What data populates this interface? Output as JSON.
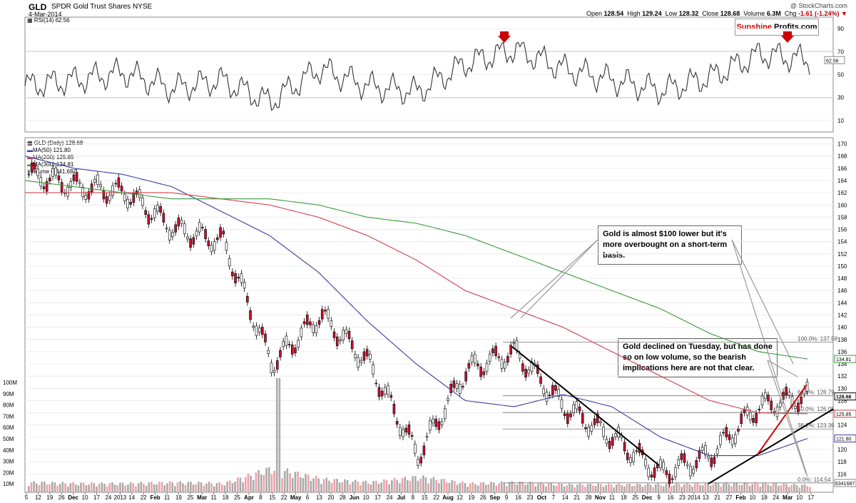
{
  "header": {
    "symbol": "GLD",
    "name": "SPDR Gold Trust Shares",
    "exchange": "NYSE",
    "date": "4-Mar-2014",
    "credit": "@ StockCharts.com",
    "open_label": "Open",
    "open": "128.54",
    "high_label": "High",
    "high": "129.24",
    "low_label": "Low",
    "low": "128.32",
    "close_label": "Close",
    "close": "128.68",
    "volume_label": "Volume",
    "volume": "6.3M",
    "chg_label": "Chg",
    "chg": "-1.61 (-1.24%)",
    "chg_icon": "down-triangle"
  },
  "logo": {
    "part1": "Sunshine",
    "part2": "Profits.com"
  },
  "rsi": {
    "label": "RSI(14) 62.56",
    "value_label": "62.56",
    "overbought": 70,
    "oversold": 30,
    "midline": 50,
    "ticks": [
      "90",
      "70",
      "50",
      "30",
      "10"
    ],
    "arrow_icon": "red-down-arrow"
  },
  "legend": {
    "title": "GLD (Daily) 128.68",
    "ma50": "MA(50) 121.80",
    "ma200": "MA(200) 125.85",
    "ma300": "MA(300) 134.81",
    "volume": "Volume 6,341,687"
  },
  "colors": {
    "ma50": "#3a3fa0",
    "ma200": "#d04050",
    "ma300": "#3a9a3a",
    "up": "#ffffff",
    "down": "#c8102e",
    "volume": "#aaaaaa",
    "volume_red": "#f0a0a8"
  },
  "callouts": {
    "top": "Gold is almost $100 lower but it's more overbought on a short-term basis.",
    "mid": "Gold declined on Tuesday, but has done so on low volume, so the bearish implications here are not that clear."
  },
  "chart_data": {
    "type": "line",
    "title": "GLD SPDR Gold Trust Shares NYSE",
    "xlabel": "",
    "ylabel": "",
    "ylim": [
      113,
      171
    ],
    "price_ticks": [
      "170",
      "168",
      "166",
      "164",
      "162",
      "160",
      "158",
      "156",
      "154",
      "152",
      "150",
      "148",
      "146",
      "144",
      "142",
      "140",
      "138",
      "136",
      "134",
      "132",
      "130",
      "128",
      "126",
      "124",
      "122",
      "120",
      "118",
      "116"
    ],
    "volume_ticks": [
      "100M",
      "90M",
      "80M",
      "70M",
      "60M",
      "50M",
      "40M",
      "30M",
      "20M",
      "10M"
    ],
    "x_ticks": [
      "5",
      "12",
      "19",
      "26",
      "Dec",
      "10",
      "17",
      "24",
      "2013",
      "14",
      "22",
      "Feb",
      "11",
      "19",
      "25",
      "Mar",
      "11",
      "18",
      "25",
      "Apr",
      "8",
      "15",
      "22",
      "May",
      "6",
      "13",
      "20",
      "28",
      "Jun",
      "10",
      "17",
      "24",
      "Jul",
      "8",
      "15",
      "22",
      "Aug",
      "12",
      "19",
      "26",
      "Sep",
      "9",
      "16",
      "23",
      "Oct",
      "7",
      "14",
      "21",
      "28",
      "Nov",
      "11",
      "18",
      "25",
      "Dec",
      "9",
      "16",
      "23",
      "2014",
      "13",
      "21",
      "27",
      "Feb",
      "10",
      "18",
      "24",
      "Mar",
      "10",
      "17"
    ],
    "right_labels": {
      "ma300": "134.81",
      "close": "128.68",
      "ma200": "125.85",
      "ma50": "121.80",
      "volume": "6341687"
    },
    "fib_levels": [
      {
        "label": "100.0%: 137.58",
        "value": 137.58
      },
      {
        "label": "61.8%: 128.79",
        "value": 128.79
      },
      {
        "label": "50.0%: 126.05",
        "value": 126.05
      },
      {
        "label": "38.2%: 123.36",
        "value": 123.36
      },
      {
        "label": "0.0%: 114.54",
        "value": 114.54
      }
    ],
    "series": [
      {
        "name": "GLD (Daily)",
        "x": [
          "Nov-2012",
          "Dec-2012",
          "Jan-2013",
          "Feb-2013",
          "Mar-2013",
          "Apr-2013",
          "May-2013",
          "Jun-2013",
          "Jul-2013",
          "Aug-2013",
          "Sep-2013",
          "Oct-2013",
          "Nov-2013",
          "Dec-2013",
          "Jan-2014",
          "Feb-2014",
          "Mar-2014"
        ],
        "values": [
          165,
          163,
          162,
          156,
          154,
          134,
          142,
          134,
          119,
          133,
          136,
          127,
          122,
          116,
          119,
          127,
          128.68
        ]
      },
      {
        "name": "MA(50)",
        "values": [
          168,
          166,
          165,
          163,
          159,
          155,
          149,
          141,
          134,
          128,
          127,
          129,
          127,
          122,
          119,
          119,
          121.8
        ]
      },
      {
        "name": "MA(200)",
        "values": [
          162,
          162,
          162,
          162,
          161,
          160,
          158,
          155,
          151,
          146,
          143,
          140,
          136,
          132,
          128,
          126,
          125.85
        ]
      },
      {
        "name": "MA(300)",
        "values": [
          164,
          163,
          162,
          161,
          161,
          161,
          160,
          158,
          157,
          155,
          152,
          149,
          146,
          143,
          139,
          136,
          134.81
        ]
      }
    ],
    "volume": [
      9,
      8,
      8,
      9,
      8,
      22,
      12,
      9,
      14,
      8,
      9,
      7,
      7,
      7,
      8,
      8,
      6.3
    ],
    "rsi_series": [
      40,
      45,
      52,
      38,
      45,
      26,
      55,
      40,
      35,
      60,
      72,
      55,
      45,
      36,
      48,
      68,
      62.56
    ]
  }
}
